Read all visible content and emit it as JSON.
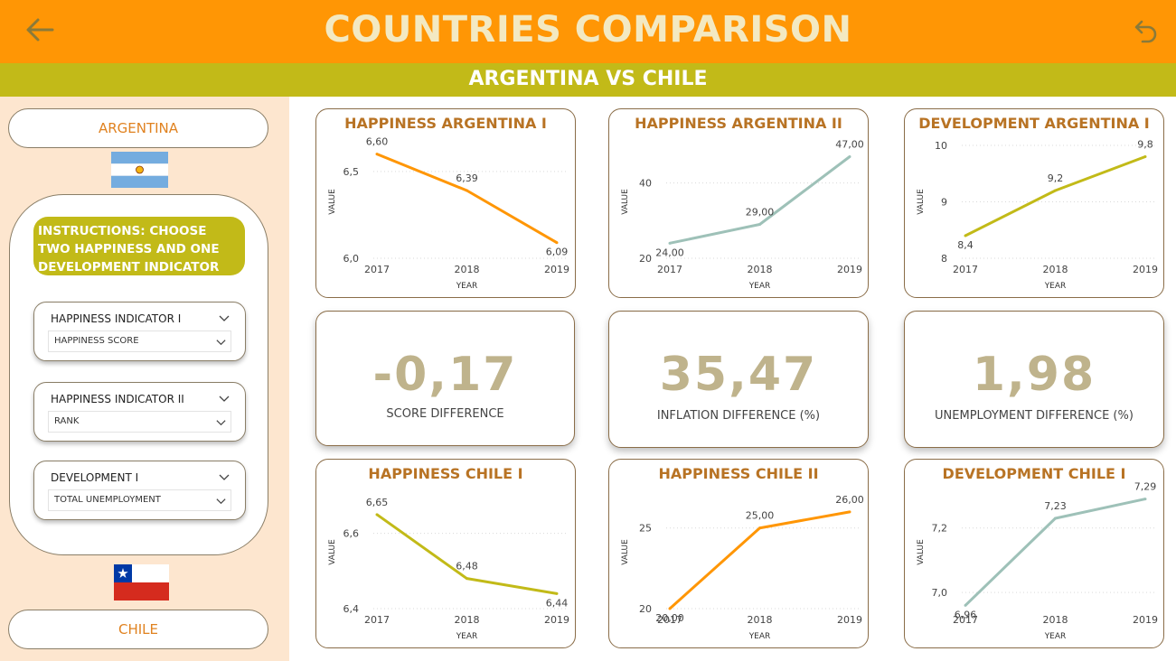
{
  "header": {
    "title": "COUNTRIES COMPARISON",
    "subtitle": "ARGENTINA VS CHILE",
    "back_icon": "arrow-left-icon",
    "undo_icon": "undo-icon",
    "color": "#FF9605",
    "sub_color": "#C2BA18"
  },
  "sidebar": {
    "country1": "ARGENTINA",
    "country2": "CHILE",
    "instructions": "INSTRUCTIONS: CHOOSE TWO HAPPINESS AND ONE DEVELOPMENT INDICATOR",
    "slicers": [
      {
        "label": "HAPPINESS INDICATOR I",
        "value": "HAPPINESS SCORE"
      },
      {
        "label": "HAPPINESS INDICATOR II",
        "value": "RANK"
      },
      {
        "label": "DEVELOPMENT I",
        "value": "TOTAL UNEMPLOYMENT"
      }
    ]
  },
  "kpis": [
    {
      "value": "-0,17",
      "label": "SCORE DIFFERENCE"
    },
    {
      "value": "35,47",
      "label": "INFLATION DIFFERENCE (%)"
    },
    {
      "value": "1,98",
      "label": "UNEMPLOYMENT DIFFERENCE (%)"
    }
  ],
  "chart_data": [
    {
      "type": "line",
      "title": "HAPPINESS ARGENTINA I",
      "x": [
        "2017",
        "2018",
        "2019"
      ],
      "values": [
        6.6,
        6.39,
        6.09
      ],
      "labels": [
        "6,60",
        "6,39",
        "6,09"
      ],
      "ylim": [
        6.0,
        6.65
      ],
      "yticks": [
        6.0,
        6.5
      ],
      "ytick_labels": [
        "6,0",
        "6,5"
      ],
      "xlabel": "YEAR",
      "ylabel": "VALUE",
      "color": "#FF9605"
    },
    {
      "type": "line",
      "title": "HAPPINESS ARGENTINA II",
      "x": [
        "2017",
        "2018",
        "2019"
      ],
      "values": [
        24,
        29,
        47
      ],
      "labels": [
        "24,00",
        "29,00",
        "47,00"
      ],
      "ylim": [
        20,
        50
      ],
      "yticks": [
        20,
        40
      ],
      "ytick_labels": [
        "20",
        "40"
      ],
      "xlabel": "YEAR",
      "ylabel": "VALUE",
      "color": "#9EC1B8"
    },
    {
      "type": "line",
      "title": "DEVELOPMENT ARGENTINA I",
      "x": [
        "2017",
        "2018",
        "2019"
      ],
      "values": [
        8.4,
        9.2,
        9.8
      ],
      "labels": [
        "8,4",
        "9,2",
        "9,8"
      ],
      "ylim": [
        8,
        10
      ],
      "yticks": [
        8,
        9,
        10
      ],
      "ytick_labels": [
        "8",
        "9",
        "10"
      ],
      "xlabel": "YEAR",
      "ylabel": "VALUE",
      "color": "#C2BA18"
    },
    {
      "type": "line",
      "title": "HAPPINESS CHILE I",
      "x": [
        "2017",
        "2018",
        "2019"
      ],
      "values": [
        6.65,
        6.48,
        6.44
      ],
      "labels": [
        "6,65",
        "6,48",
        "6,44"
      ],
      "ylim": [
        6.4,
        6.7
      ],
      "yticks": [
        6.4,
        6.6
      ],
      "ytick_labels": [
        "6,4",
        "6,6"
      ],
      "xlabel": "YEAR",
      "ylabel": "VALUE",
      "color": "#C2BA18"
    },
    {
      "type": "line",
      "title": "HAPPINESS CHILE II",
      "x": [
        "2017",
        "2018",
        "2019"
      ],
      "values": [
        20,
        25,
        26
      ],
      "labels": [
        "20,00",
        "25,00",
        "26,00"
      ],
      "ylim": [
        20,
        27
      ],
      "yticks": [
        20,
        25
      ],
      "ytick_labels": [
        "20",
        "25"
      ],
      "xlabel": "YEAR",
      "ylabel": "VALUE",
      "color": "#FF9605"
    },
    {
      "type": "line",
      "title": "DEVELOPMENT CHILE I",
      "x": [
        "2017",
        "2018",
        "2019"
      ],
      "values": [
        6.96,
        7.23,
        7.29
      ],
      "labels": [
        "6,96",
        "7,23",
        "7,29"
      ],
      "ylim": [
        6.95,
        7.3
      ],
      "yticks": [
        7.0,
        7.2
      ],
      "ytick_labels": [
        "7,0",
        "7,2"
      ],
      "xlabel": "YEAR",
      "ylabel": "VALUE",
      "color": "#9EC1B8"
    }
  ]
}
